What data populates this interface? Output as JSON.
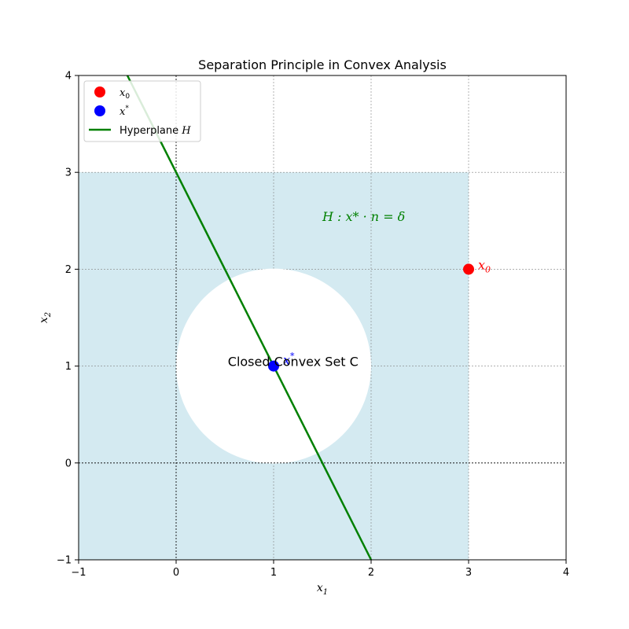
{
  "chart_data": {
    "type": "scatter",
    "title": "Separation Principle in Convex Analysis",
    "xlabel": "x",
    "xlabel_sub": "1",
    "ylabel": "x",
    "ylabel_sub": "2",
    "xlim": [
      -1,
      4
    ],
    "ylim": [
      -1,
      4
    ],
    "xticks": [
      -1,
      0,
      1,
      2,
      3,
      4
    ],
    "yticks": [
      -1,
      0,
      1,
      2,
      3,
      4
    ],
    "grid": true,
    "legend_position": "top-left",
    "shaded_region": {
      "x": [
        -1,
        3
      ],
      "y": [
        -1,
        3
      ],
      "color": "#d4eaf1"
    },
    "convex_set": {
      "center": [
        1,
        1
      ],
      "radius": 1,
      "label": "Closed Convex Set C"
    },
    "points": [
      {
        "name": "x0",
        "x": 3,
        "y": 2,
        "color": "#ff0000",
        "label": "x",
        "label_sub": "0"
      },
      {
        "name": "x-star",
        "x": 1,
        "y": 1,
        "color": "#0000ff",
        "label": "x",
        "label_sup": "*"
      }
    ],
    "hyperplane": {
      "x": [
        -0.5,
        2
      ],
      "y": [
        4,
        -1
      ],
      "color": "#008000",
      "label": "H : x* · n = δ",
      "label_pos": [
        1.5,
        2.5
      ]
    },
    "legend": [
      {
        "kind": "marker",
        "color": "#ff0000",
        "text": "x",
        "sub": "0"
      },
      {
        "kind": "marker",
        "color": "#0000ff",
        "text": "x",
        "sup": "*"
      },
      {
        "kind": "line",
        "color": "#008000",
        "text": "Hyperplane ",
        "math": "H"
      }
    ]
  }
}
